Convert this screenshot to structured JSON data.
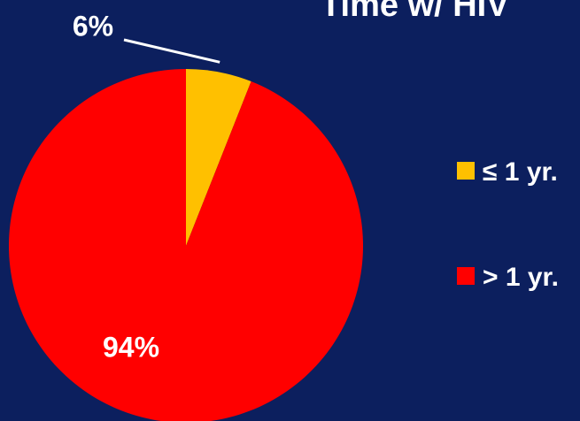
{
  "chart_data": {
    "type": "pie",
    "title": "Time w/ HIV",
    "categories": [
      "≤ 1 yr.",
      "> 1 yr."
    ],
    "values": [
      6,
      94
    ],
    "value_labels": [
      "6%",
      "94%"
    ],
    "colors": [
      "#ffc000",
      "#ff0000"
    ]
  }
}
